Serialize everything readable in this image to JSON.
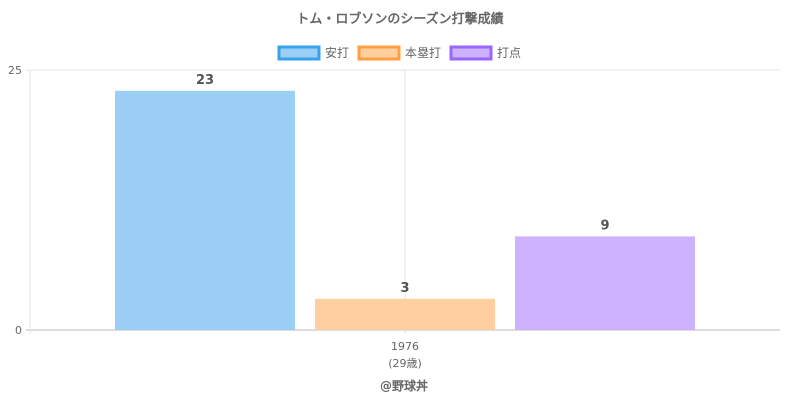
{
  "chart_data": {
    "type": "bar",
    "title": "トム・ロブソンのシーズン打撃成績",
    "categories": [
      "1976"
    ],
    "category_sublabels": [
      "(29歳)"
    ],
    "series": [
      {
        "name": "安打",
        "values": [
          23
        ],
        "fill": "#9ccff5",
        "stroke": "#36a2eb"
      },
      {
        "name": "本塁打",
        "values": [
          3
        ],
        "fill": "#ffcf9f",
        "stroke": "#ff9f40"
      },
      {
        "name": "打点",
        "values": [
          9
        ],
        "fill": "#ccb2ff",
        "stroke": "#9966ff"
      }
    ],
    "ylim": [
      0,
      25
    ],
    "y_ticks": [
      0,
      25
    ],
    "grid": true,
    "legend_position": "top",
    "xlabel": "",
    "ylabel": ""
  },
  "credit": "@野球丼"
}
